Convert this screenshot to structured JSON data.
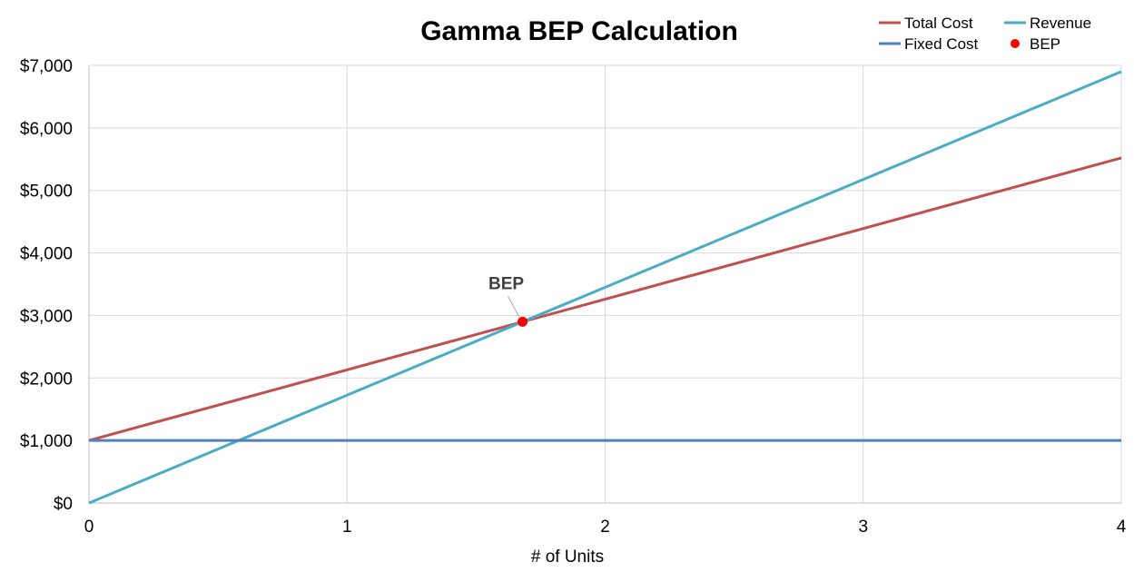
{
  "chart_data": {
    "type": "line",
    "title": "Gamma BEP Calculation",
    "xlabel": "# of Units",
    "ylabel": "",
    "xlim": [
      0,
      4
    ],
    "ylim": [
      0,
      7000
    ],
    "x_ticks": [
      "0",
      "1",
      "2",
      "3",
      "4"
    ],
    "y_ticks": [
      "$0",
      "$1,000",
      "$2,000",
      "$3,000",
      "$4,000",
      "$5,000",
      "$6,000",
      "$7,000"
    ],
    "grid": true,
    "legend_position": "top-right",
    "series": [
      {
        "name": "Total Cost",
        "color": "#C0504D",
        "x": [
          0,
          4
        ],
        "y": [
          1000,
          5520
        ]
      },
      {
        "name": "Revenue",
        "color": "#4BACC6",
        "x": [
          0,
          4
        ],
        "y": [
          0,
          6900
        ]
      },
      {
        "name": "Fixed Cost",
        "color": "#4F81BD",
        "x": [
          0,
          4
        ],
        "y": [
          1000,
          1000
        ]
      }
    ],
    "points": [
      {
        "name": "BEP",
        "color": "#FF0000",
        "x": 1.68,
        "y": 2900
      }
    ],
    "annotations": [
      {
        "text": "BEP",
        "x": 1.68,
        "y": 2900
      }
    ]
  }
}
